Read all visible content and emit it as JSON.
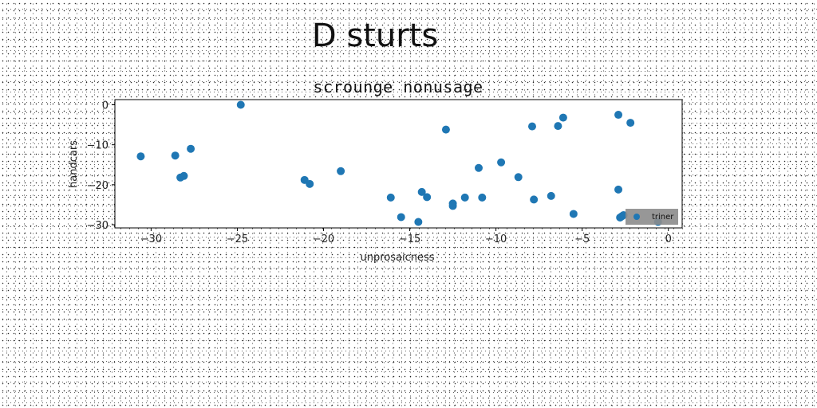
{
  "figure_title": "D sturts",
  "chart_data": {
    "type": "scatter",
    "title": "scrounge nonusage",
    "xlabel": "unprosaicness",
    "ylabel": "handcars",
    "xlim": [
      -32.1,
      0.8
    ],
    "ylim": [
      -30.8,
      1.3
    ],
    "xticks": [
      -30,
      -25,
      -20,
      -15,
      -10,
      -5,
      0
    ],
    "yticks": [
      0,
      -10,
      -20,
      -30
    ],
    "grid": false,
    "legend_position": "lower right",
    "series": [
      {
        "name": "triner",
        "color": "#1f77b4",
        "x": [
          -30.6,
          -28.6,
          -28.3,
          -28.1,
          -27.7,
          -24.8,
          -21.1,
          -20.8,
          -19.0,
          -16.1,
          -15.5,
          -14.5,
          -14.3,
          -14.0,
          -12.9,
          -12.5,
          -12.5,
          -11.8,
          -11.0,
          -10.8,
          -9.7,
          -8.7,
          -7.9,
          -7.8,
          -6.8,
          -6.4,
          -6.1,
          -5.5,
          -2.9,
          -2.9,
          -2.8,
          -2.7,
          -2.6,
          -2.2,
          -0.6
        ],
        "y": [
          -12.9,
          -12.7,
          -18.2,
          -17.8,
          -11.0,
          0.0,
          -18.8,
          -19.8,
          -16.6,
          -23.2,
          -28.1,
          -29.3,
          -21.8,
          -23.1,
          -6.2,
          -25.3,
          -24.7,
          -23.2,
          -15.8,
          -23.2,
          -14.4,
          -18.1,
          -5.4,
          -23.7,
          -22.8,
          -5.3,
          -3.2,
          -27.3,
          -2.5,
          -21.2,
          -28.2,
          -27.9,
          -27.6,
          -4.5,
          -29.3
        ]
      }
    ]
  }
}
